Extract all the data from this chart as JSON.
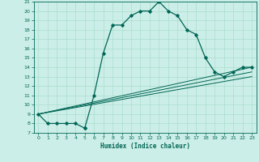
{
  "title": "",
  "xlabel": "Humidex (Indice chaleur)",
  "ylabel": "",
  "bg_color": "#cceee8",
  "grid_color": "#aaddcc",
  "line_color": "#006655",
  "x_data": [
    0,
    1,
    2,
    3,
    4,
    5,
    5,
    6,
    7,
    8,
    9,
    10,
    11,
    12,
    13,
    14,
    15,
    16,
    17,
    18,
    19,
    20,
    21,
    22,
    23
  ],
  "y_main": [
    9,
    8,
    8,
    8,
    8,
    7.5,
    7.5,
    11,
    15.5,
    18.5,
    18.5,
    19.5,
    20,
    20,
    21,
    20,
    19.5,
    18,
    17.5,
    15,
    13.5,
    13,
    13.5,
    14,
    14
  ],
  "lines": [
    {
      "x": [
        0,
        23
      ],
      "y": [
        9,
        14.0
      ]
    },
    {
      "x": [
        0,
        23
      ],
      "y": [
        9,
        13.5
      ]
    },
    {
      "x": [
        0,
        23
      ],
      "y": [
        9,
        13.0
      ]
    }
  ],
  "ylim_min": 7,
  "ylim_max": 21,
  "xlim_min": -0.5,
  "xlim_max": 23.5,
  "yticks": [
    7,
    8,
    9,
    10,
    11,
    12,
    13,
    14,
    15,
    16,
    17,
    18,
    19,
    20,
    21
  ],
  "xticks": [
    0,
    1,
    2,
    3,
    4,
    5,
    6,
    7,
    8,
    9,
    10,
    11,
    12,
    13,
    14,
    15,
    16,
    17,
    18,
    19,
    20,
    21,
    22,
    23
  ]
}
